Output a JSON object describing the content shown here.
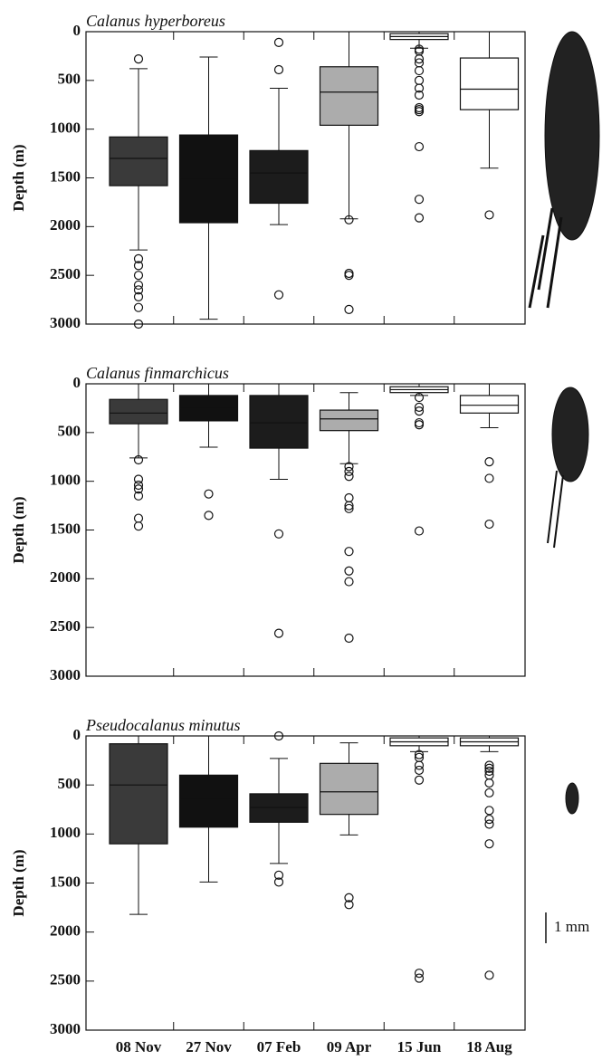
{
  "chart_data": [
    {
      "type": "box",
      "title": "Calanus hyperboreus",
      "y_label": "Depth (m)",
      "ylim": [
        0,
        3000
      ],
      "y_inverted": true,
      "yticks": [
        0,
        500,
        1000,
        1500,
        2000,
        2500,
        3000
      ],
      "boxes": [
        {
          "whisker_low": 380,
          "q1": 1080,
          "median": 1300,
          "q3": 1580,
          "whisker_high": 2240,
          "outliers": [
            280,
            2330,
            2400,
            2500,
            2600,
            2650,
            2720,
            2830,
            3000
          ],
          "color": "#3a3a3a"
        },
        {
          "whisker_low": 260,
          "q1": 1060,
          "median": 1500,
          "q3": 1960,
          "whisker_high": 2950,
          "outliers": [],
          "color": "#111111"
        },
        {
          "whisker_low": 580,
          "q1": 1220,
          "median": 1450,
          "q3": 1760,
          "whisker_high": 1980,
          "outliers": [
            110,
            390,
            2700
          ],
          "color": "#1c1c1c"
        },
        {
          "whisker_low": 0,
          "q1": 360,
          "median": 620,
          "q3": 960,
          "whisker_high": 1920,
          "outliers": [
            1930,
            2480,
            2500,
            2850
          ],
          "color": "#acacac"
        },
        {
          "whisker_low": 0,
          "q1": 20,
          "median": 50,
          "q3": 80,
          "whisker_high": 170,
          "outliers": [
            180,
            200,
            280,
            320,
            400,
            500,
            580,
            650,
            780,
            800,
            820,
            1180,
            1720,
            1910
          ],
          "color": "#ffffff"
        },
        {
          "whisker_low": 0,
          "q1": 270,
          "median": 590,
          "q3": 800,
          "whisker_high": 1400,
          "outliers": [
            1880
          ],
          "color": "#ffffff"
        }
      ]
    },
    {
      "type": "box",
      "title": "Calanus finmarchicus",
      "y_label": "Depth (m)",
      "ylim": [
        0,
        3000
      ],
      "y_inverted": true,
      "yticks": [
        0,
        500,
        1000,
        1500,
        2000,
        2500,
        3000
      ],
      "boxes": [
        {
          "whisker_low": 0,
          "q1": 160,
          "median": 300,
          "q3": 410,
          "whisker_high": 760,
          "outliers": [
            780,
            980,
            1040,
            1080,
            1150,
            1380,
            1460
          ],
          "color": "#3a3a3a"
        },
        {
          "whisker_low": 0,
          "q1": 120,
          "median": 250,
          "q3": 380,
          "whisker_high": 650,
          "outliers": [
            1130,
            1350
          ],
          "color": "#111111"
        },
        {
          "whisker_low": 0,
          "q1": 120,
          "median": 400,
          "q3": 660,
          "whisker_high": 980,
          "outliers": [
            1540,
            2560
          ],
          "color": "#1c1c1c"
        },
        {
          "whisker_low": 90,
          "q1": 270,
          "median": 360,
          "q3": 480,
          "whisker_high": 820,
          "outliers": [
            850,
            900,
            950,
            1170,
            1250,
            1280,
            1720,
            1920,
            2030,
            2610
          ],
          "color": "#acacac"
        },
        {
          "whisker_low": 0,
          "q1": 30,
          "median": 60,
          "q3": 90,
          "whisker_high": 120,
          "outliers": [
            140,
            240,
            280,
            400,
            420,
            1510
          ],
          "color": "#ffffff"
        },
        {
          "whisker_low": 0,
          "q1": 120,
          "median": 220,
          "q3": 300,
          "whisker_high": 450,
          "outliers": [
            800,
            970,
            1440
          ],
          "color": "#ffffff"
        }
      ]
    },
    {
      "type": "box",
      "title": "Pseudocalanus minutus",
      "y_label": "Depth (m)",
      "ylim": [
        0,
        3000
      ],
      "y_inverted": true,
      "yticks": [
        0,
        500,
        1000,
        1500,
        2000,
        2500,
        3000
      ],
      "categories": [
        "08 Nov",
        "27 Nov",
        "07 Feb",
        "09 Apr",
        "15 Jun",
        "18 Aug"
      ],
      "boxes": [
        {
          "whisker_low": 0,
          "q1": 80,
          "median": 500,
          "q3": 1100,
          "whisker_high": 1820,
          "outliers": [],
          "color": "#3a3a3a"
        },
        {
          "whisker_low": 0,
          "q1": 400,
          "median": 650,
          "q3": 930,
          "whisker_high": 1490,
          "outliers": [],
          "color": "#111111"
        },
        {
          "whisker_low": 230,
          "q1": 590,
          "median": 730,
          "q3": 880,
          "whisker_high": 1300,
          "outliers": [
            0,
            1420,
            1490
          ],
          "color": "#1c1c1c"
        },
        {
          "whisker_low": 70,
          "q1": 280,
          "median": 570,
          "q3": 800,
          "whisker_high": 1010,
          "outliers": [
            1650,
            1720
          ],
          "color": "#acacac"
        },
        {
          "whisker_low": 0,
          "q1": 20,
          "median": 60,
          "q3": 100,
          "whisker_high": 160,
          "outliers": [
            190,
            220,
            300,
            350,
            450,
            2420,
            2470
          ],
          "color": "#ffffff"
        },
        {
          "whisker_low": 0,
          "q1": 20,
          "median": 60,
          "q3": 100,
          "whisker_high": 160,
          "outliers": [
            300,
            330,
            360,
            400,
            480,
            580,
            760,
            850,
            900,
            1100,
            2440
          ],
          "color": "#ffffff"
        }
      ]
    }
  ],
  "scale_label": "1 mm"
}
